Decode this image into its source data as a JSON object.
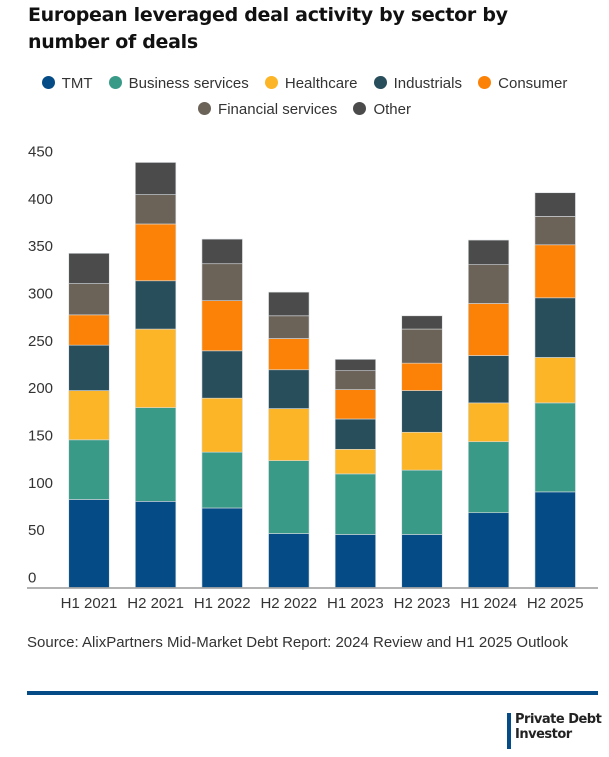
{
  "chart_data": {
    "type": "bar",
    "stacked": true,
    "title": "European leveraged deal activity by sector by number of deals",
    "xlabel": "",
    "ylabel": "",
    "ylim": [
      0,
      450
    ],
    "yticks": [
      0,
      50,
      100,
      150,
      200,
      250,
      300,
      350,
      400,
      450
    ],
    "grid": false,
    "legend_position": "top-center",
    "categories": [
      "H1 2021",
      "H2 2021",
      "H1 2022",
      "H2 2022",
      "H1 2023",
      "H2 2023",
      "H1 2024",
      "H2 2025"
    ],
    "series": [
      {
        "name": "TMT",
        "color": "#054c87",
        "values": [
          93,
          91,
          84,
          57,
          56,
          56,
          79,
          101
        ]
      },
      {
        "name": "Business services",
        "color": "#3a9a88",
        "values": [
          63,
          99,
          59,
          77,
          64,
          68,
          75,
          94
        ]
      },
      {
        "name": "Healthcare",
        "color": "#fbb526",
        "values": [
          52,
          83,
          57,
          55,
          26,
          40,
          41,
          48
        ]
      },
      {
        "name": "Industrials",
        "color": "#284d5b",
        "values": [
          48,
          51,
          50,
          41,
          32,
          44,
          50,
          63
        ]
      },
      {
        "name": "Consumer",
        "color": "#fb8206",
        "values": [
          32,
          60,
          53,
          33,
          31,
          29,
          55,
          56
        ]
      },
      {
        "name": "Financial services",
        "color": "#6b6258",
        "values": [
          33,
          31,
          39,
          24,
          20,
          36,
          41,
          30
        ]
      },
      {
        "name": "Other",
        "color": "#4b4b4b",
        "values": [
          32,
          34,
          26,
          25,
          12,
          14,
          26,
          25
        ]
      }
    ]
  },
  "header": {
    "title": "European leveraged deal activity by sector by number of deals"
  },
  "legend": {
    "row1": [
      "TMT",
      "Business services",
      "Healthcare",
      "Industrials",
      "Consumer"
    ],
    "row2": [
      "Financial services",
      "Other"
    ]
  },
  "footer": {
    "source": "Source: AlixPartners Mid-Market Debt Report: 2024 Review and H1 2025 Outlook",
    "logo_line1": "Private Debt",
    "logo_line2": "Investor",
    "rule_color": "#054c87"
  }
}
